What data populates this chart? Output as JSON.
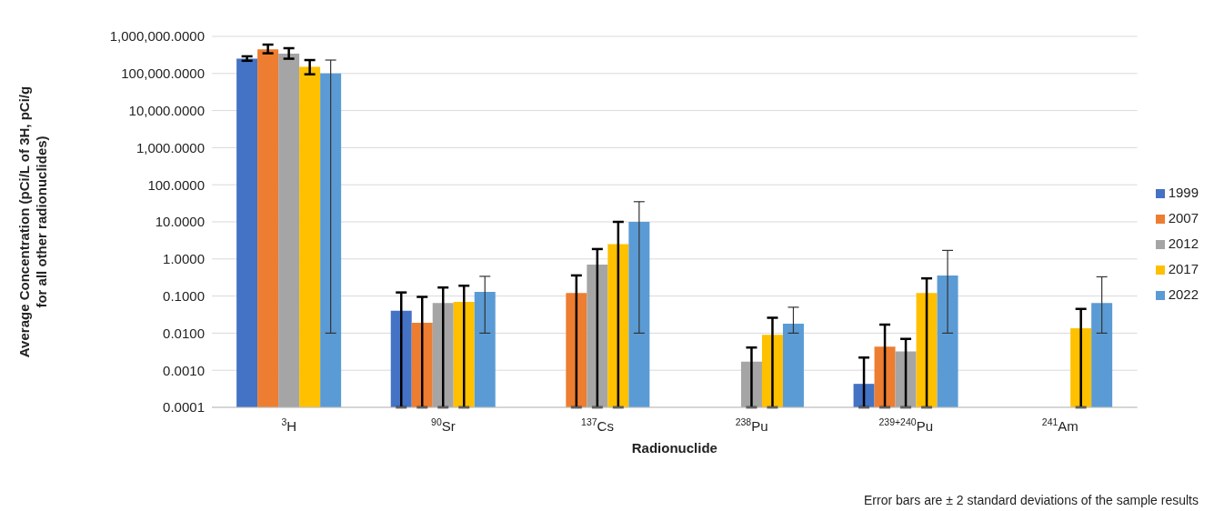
{
  "chart_data": {
    "type": "bar",
    "xlabel": "Radionuclide",
    "ylabel": "Average Concentration (pCi/L of 3H, pCi/g for all other radionuclides)",
    "categories": [
      "$^{3}$H",
      "$^{90}$Sr",
      "$^{137}$Cs",
      "$^{238}$Pu",
      "$^{239+240}$Pu",
      "$^{241}$Am"
    ],
    "series": [
      {
        "name": "1999",
        "color": "#4472c4",
        "values": [
          250000,
          0.04,
          null,
          null,
          0.00043,
          null
        ],
        "errors": [
          [
            220000,
            290000
          ],
          [
            0.0001,
            0.125
          ],
          null,
          null,
          [
            0.0001,
            0.0022
          ],
          null
        ]
      },
      {
        "name": "2007",
        "color": "#ed7d31",
        "values": [
          450000,
          0.019,
          0.12,
          null,
          0.0043,
          null
        ],
        "errors": [
          [
            350000,
            600000
          ],
          [
            0.0001,
            0.095
          ],
          [
            0.0001,
            0.36
          ],
          null,
          [
            0.0001,
            0.017
          ],
          null
        ]
      },
      {
        "name": "2012",
        "color": "#a5a5a5",
        "values": [
          340000,
          0.065,
          0.7,
          0.0017,
          0.0032,
          null
        ],
        "errors": [
          [
            250000,
            480000
          ],
          [
            0.0001,
            0.17
          ],
          [
            0.0001,
            1.85
          ],
          [
            0.0001,
            0.0041
          ],
          [
            0.0001,
            0.007
          ],
          null
        ]
      },
      {
        "name": "2017",
        "color": "#ffc000",
        "values": [
          150000,
          0.07,
          2.5,
          0.009,
          0.12,
          0.0135
        ],
        "errors": [
          [
            95000,
            230000
          ],
          [
            0.0001,
            0.19
          ],
          [
            0.0001,
            10
          ],
          [
            0.0001,
            0.026
          ],
          [
            0.0001,
            0.3
          ],
          [
            0.0001,
            0.045
          ]
        ]
      },
      {
        "name": "2022",
        "color": "#5b9bd5",
        "values": [
          100000,
          0.13,
          10,
          0.018,
          0.36,
          0.065
        ],
        "errors": [
          [
            0.01,
            230000
          ],
          [
            0.01,
            0.34
          ],
          [
            0.01,
            35
          ],
          [
            0.01,
            0.05
          ],
          [
            0.01,
            1.7
          ],
          [
            0.01,
            0.33
          ]
        ]
      }
    ],
    "log": "y",
    "ylim": [
      0.0001,
      1000000
    ],
    "yticks": [
      {
        "value": 0.0001,
        "label": "0.0001"
      },
      {
        "value": 0.001,
        "label": "0.0010"
      },
      {
        "value": 0.01,
        "label": "0.0100"
      },
      {
        "value": 0.1,
        "label": "0.1000"
      },
      {
        "value": 1,
        "label": "1.0000"
      },
      {
        "value": 10,
        "label": "10.0000"
      },
      {
        "value": 100,
        "label": "100.0000"
      },
      {
        "value": 1000,
        "label": "1,000.0000"
      },
      {
        "value": 10000,
        "label": "10,000.0000"
      },
      {
        "value": 100000,
        "label": "100,000.0000"
      },
      {
        "value": 1000000,
        "label": "1,000,000.0000"
      }
    ],
    "grid": "y",
    "legend": "right",
    "annotations": [
      "Error bars are ± 2 standard deviations of the sample results"
    ]
  }
}
